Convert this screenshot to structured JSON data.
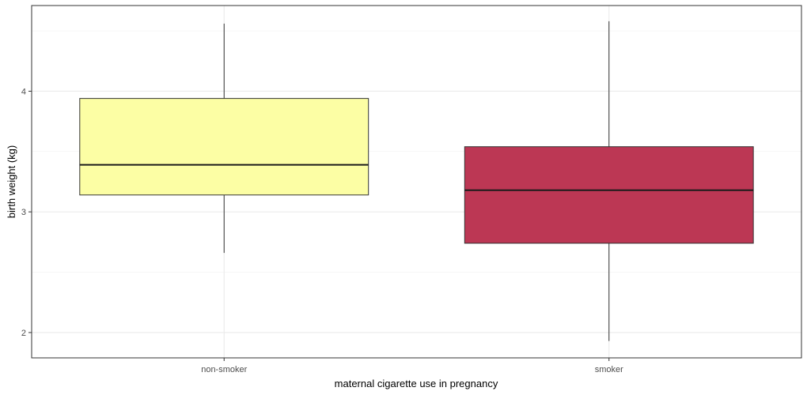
{
  "chart_data": {
    "type": "box",
    "xlabel": "maternal cigarette use in pregnancy",
    "ylabel": "birth weight (kg)",
    "ylim": [
      1.79,
      4.71
    ],
    "y_ticks": [
      2,
      3,
      4
    ],
    "y_tick_labels": [
      "2",
      "3",
      "4"
    ],
    "grid": true,
    "categories": [
      "non-smoker",
      "smoker"
    ],
    "boxes": [
      {
        "category": "non-smoker",
        "min": 2.66,
        "q1": 3.14,
        "median": 3.39,
        "q3": 3.94,
        "max": 4.56,
        "fill": "#fcfea4"
      },
      {
        "category": "smoker",
        "min": 1.93,
        "q1": 2.74,
        "median": 3.18,
        "q3": 3.54,
        "max": 4.58,
        "fill": "#bc3754"
      }
    ]
  }
}
